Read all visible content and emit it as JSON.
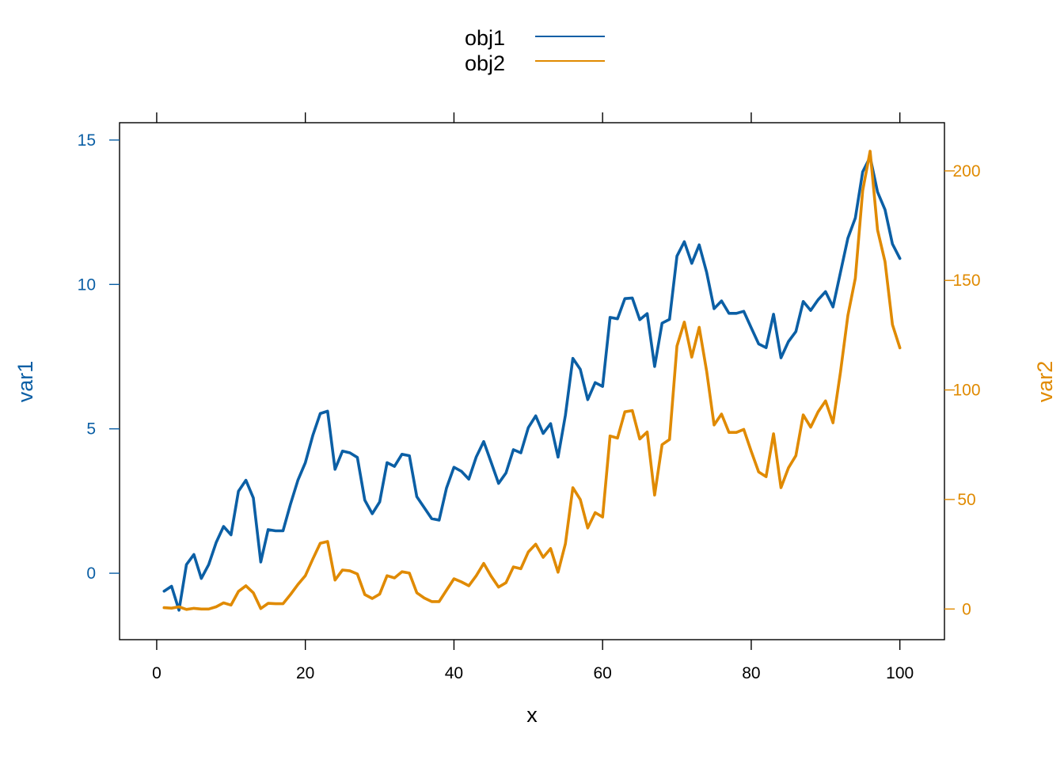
{
  "chart_data": {
    "type": "line",
    "xlabel": "x",
    "ylabel_left": "var1",
    "ylabel_right": "var2",
    "xlim": [
      -5,
      106
    ],
    "ylim_left": [
      -2.3,
      15.6
    ],
    "ylim_right": [
      -14,
      222
    ],
    "x_ticks": [
      0,
      20,
      40,
      60,
      80,
      100
    ],
    "y_left_ticks": [
      0,
      5,
      10,
      15
    ],
    "y_right_ticks": [
      0,
      50,
      100,
      150,
      200
    ],
    "grid": false,
    "legend_position": "top",
    "colors": {
      "obj1": "#0B5FA5",
      "obj2": "#E08A00",
      "axis": "#000000"
    },
    "series": [
      {
        "name": "obj1",
        "axis": "left",
        "x": [
          1,
          2,
          3,
          4,
          5,
          6,
          7,
          8,
          9,
          10,
          11,
          12,
          13,
          14,
          15,
          16,
          17,
          18,
          19,
          20,
          21,
          22,
          23,
          24,
          25,
          26,
          27,
          28,
          29,
          30,
          31,
          32,
          33,
          34,
          35,
          36,
          37,
          38,
          39,
          40,
          41,
          42,
          43,
          44,
          45,
          46,
          47,
          48,
          49,
          50,
          51,
          52,
          53,
          54,
          55,
          56,
          57,
          58,
          59,
          60,
          61,
          62,
          63,
          64,
          65,
          66,
          67,
          68,
          69,
          70,
          71,
          72,
          73,
          74,
          75,
          76,
          77,
          78,
          79,
          80,
          81,
          82,
          83,
          84,
          85,
          86,
          87,
          88,
          89,
          90,
          91,
          92,
          93,
          94,
          95,
          96,
          97,
          98,
          99,
          100
        ],
        "values": [
          -0.62,
          -0.45,
          -1.28,
          0.3,
          0.65,
          -0.18,
          0.3,
          1.06,
          1.62,
          1.33,
          2.84,
          3.22,
          2.61,
          0.39,
          1.51,
          1.47,
          1.47,
          2.39,
          3.22,
          3.83,
          4.77,
          5.53,
          5.61,
          3.6,
          4.23,
          4.17,
          4.01,
          2.53,
          2.06,
          2.47,
          3.83,
          3.7,
          4.12,
          4.07,
          2.65,
          2.27,
          1.89,
          1.84,
          2.95,
          3.67,
          3.53,
          3.26,
          4.03,
          4.56,
          3.84,
          3.11,
          3.47,
          4.28,
          4.17,
          5.04,
          5.45,
          4.84,
          5.18,
          4.02,
          5.47,
          7.44,
          7.06,
          6.01,
          6.6,
          6.47,
          8.86,
          8.81,
          9.51,
          9.53,
          8.78,
          8.99,
          7.16,
          8.66,
          8.79,
          10.98,
          11.48,
          10.73,
          11.37,
          10.42,
          9.16,
          9.43,
          9.0,
          9.0,
          9.07,
          8.5,
          7.94,
          7.81,
          8.97,
          7.46,
          8.02,
          8.37,
          9.41,
          9.1,
          9.47,
          9.75,
          9.22,
          10.41,
          11.6,
          12.3,
          13.9,
          14.41,
          13.2,
          12.59,
          11.4,
          10.9
        ]
      },
      {
        "name": "obj2",
        "axis": "right",
        "x": [
          1,
          2,
          3,
          4,
          5,
          6,
          7,
          8,
          9,
          10,
          11,
          12,
          13,
          14,
          15,
          16,
          17,
          18,
          19,
          20,
          21,
          22,
          23,
          24,
          25,
          26,
          27,
          28,
          29,
          30,
          31,
          32,
          33,
          34,
          35,
          36,
          37,
          38,
          39,
          40,
          41,
          42,
          43,
          44,
          45,
          46,
          47,
          48,
          49,
          50,
          51,
          52,
          53,
          54,
          55,
          56,
          57,
          58,
          59,
          60,
          61,
          62,
          63,
          64,
          65,
          66,
          67,
          68,
          69,
          70,
          71,
          72,
          73,
          74,
          75,
          76,
          77,
          78,
          79,
          80,
          81,
          82,
          83,
          84,
          85,
          86,
          87,
          88,
          89,
          90,
          91,
          92,
          93,
          94,
          95,
          96,
          97,
          98,
          99,
          100
        ],
        "values": [
          0.6,
          0.4,
          1.0,
          -0.2,
          0.3,
          0.0,
          0.0,
          1.0,
          2.8,
          1.8,
          8.0,
          10.6,
          7.4,
          0.2,
          2.6,
          2.4,
          2.4,
          6.6,
          11.2,
          15.2,
          22.8,
          30.0,
          30.8,
          13.2,
          17.8,
          17.4,
          16.0,
          6.6,
          4.8,
          6.8,
          15.2,
          14.2,
          17.0,
          16.4,
          7.4,
          5.0,
          3.4,
          3.4,
          8.6,
          13.8,
          12.4,
          10.6,
          15.2,
          20.8,
          15.0,
          10.0,
          12.0,
          19.2,
          18.4,
          26.0,
          29.6,
          23.6,
          27.6,
          16.8,
          29.8,
          55.4,
          50.0,
          37.0,
          44.0,
          42.0,
          79.0,
          78.0,
          90.0,
          90.6,
          77.6,
          80.8,
          52.0,
          75.0,
          77.4,
          120.0,
          131.0,
          115.0,
          128.6,
          108.6,
          84.0,
          89.0,
          80.6,
          80.6,
          82.0,
          72.0,
          62.6,
          60.4,
          80.0,
          55.4,
          64.4,
          70.0,
          88.6,
          83.0,
          90.0,
          95.0,
          85.0,
          108.0,
          134.0,
          151.0,
          191.0,
          209.0,
          173.0,
          158.6,
          129.8,
          119.2
        ]
      }
    ]
  }
}
